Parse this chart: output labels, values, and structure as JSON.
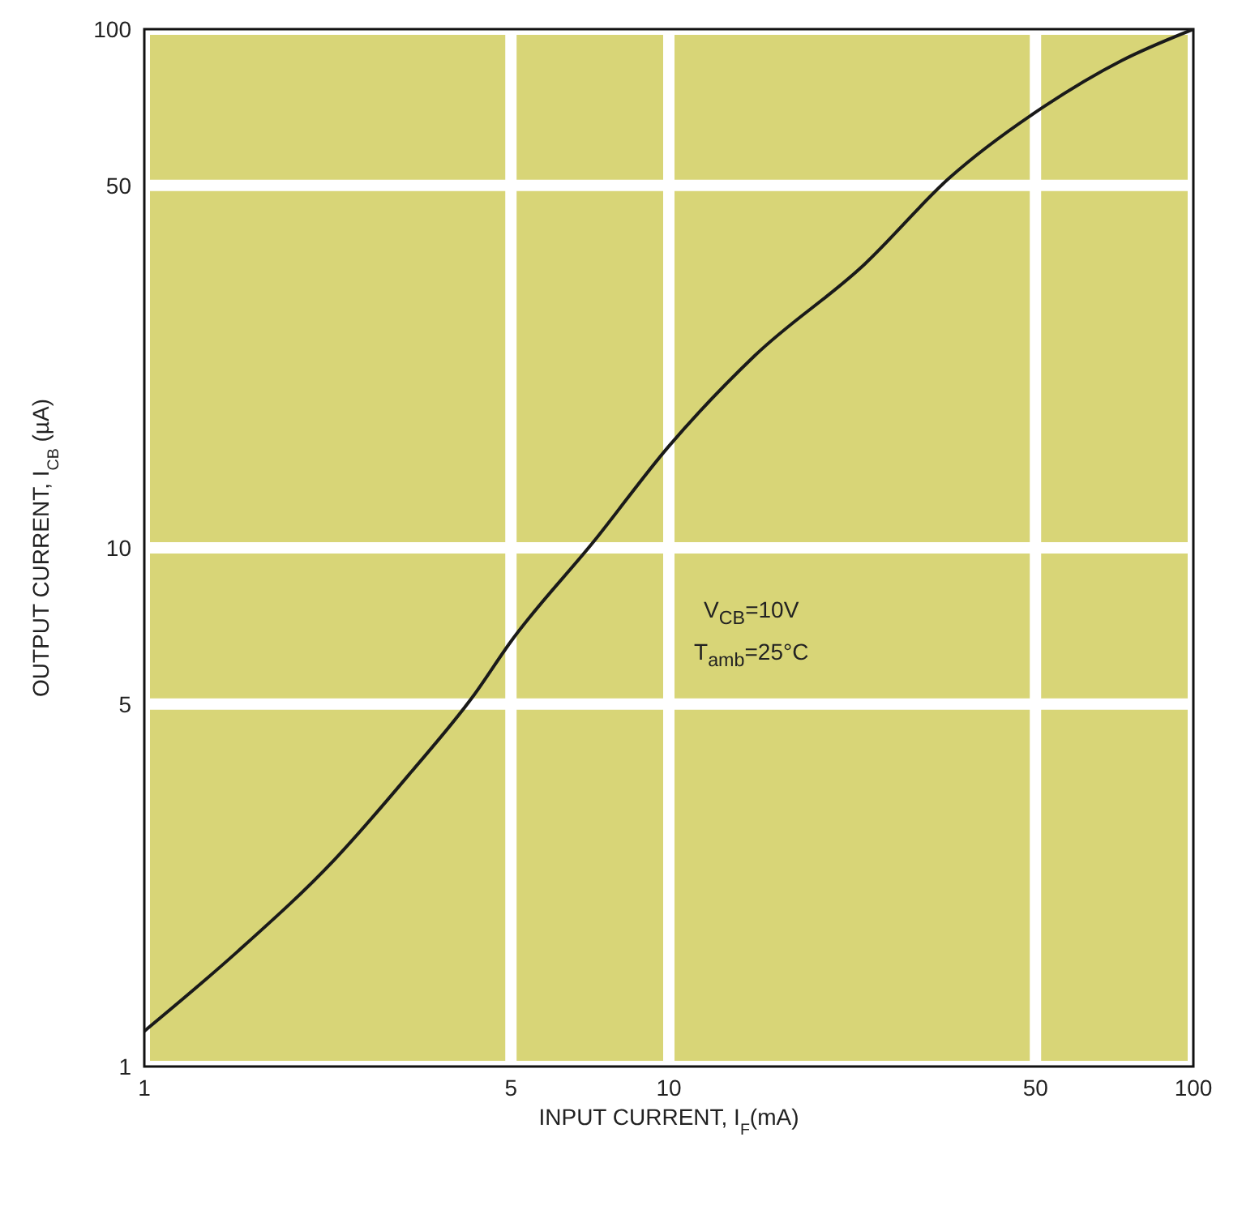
{
  "chart_data": {
    "type": "line",
    "xlabel": "INPUT CURRENT, I$_{F}$(mA)",
    "ylabel": "OUTPUT CURRENT, I$_{CB}$ (µA)",
    "annotations": [
      "V$_{CB}$=10V",
      "T$_{amb}$=25°C"
    ],
    "log": "xy",
    "xlim": [
      1,
      100
    ],
    "ylim": [
      1,
      100
    ],
    "xticks": [
      1,
      5,
      10,
      50,
      100
    ],
    "yticks": [
      1,
      5,
      10,
      50,
      100
    ],
    "grid": true,
    "marker": "none",
    "line_style": "solid",
    "series": [
      {
        "color": "#1a1a1a",
        "x": [
          1,
          1.5,
          2.3,
          3.2,
          4.25,
          5,
          7.2,
          10,
          14.6,
          23.6,
          34.3,
          52,
          73,
          100
        ],
        "values": [
          1.17,
          1.66,
          2.5,
          3.66,
          5.2,
          6.6,
          10.3,
          15.7,
          23.5,
          35.2,
          51.7,
          71,
          87,
          100
        ]
      }
    ]
  }
}
